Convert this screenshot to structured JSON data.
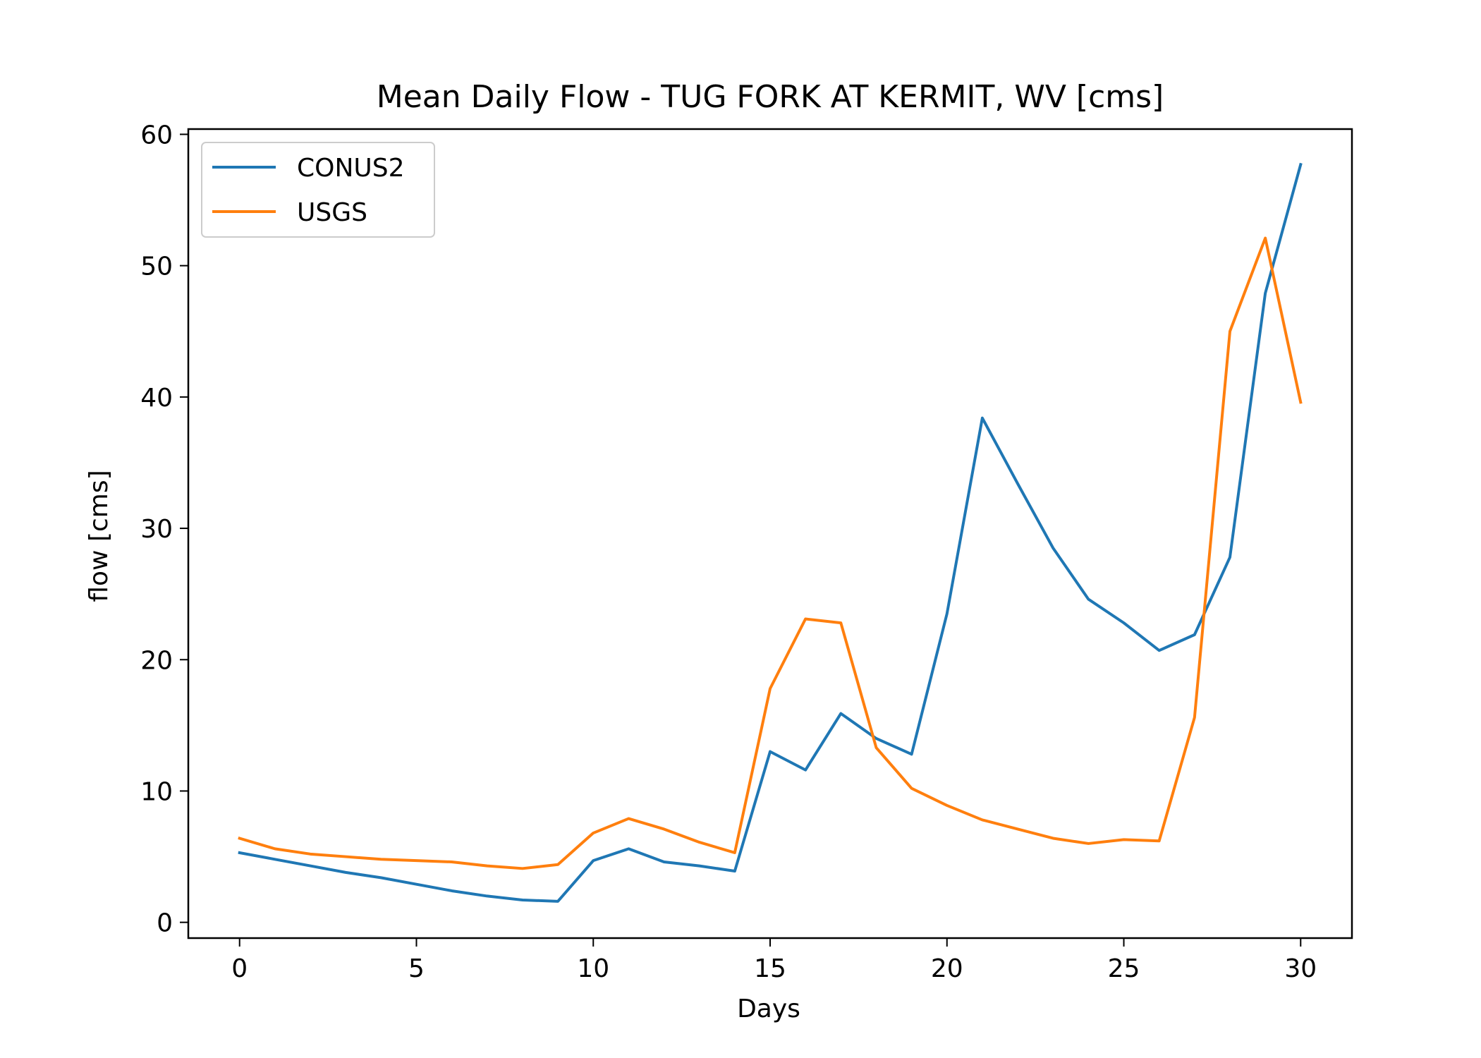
{
  "chart_data": {
    "type": "line",
    "title": "Mean Daily Flow - TUG FORK AT KERMIT, WV [cms]",
    "xlabel": "Days",
    "ylabel": "flow [cms]",
    "xlim": [
      -1.45,
      31.45
    ],
    "ylim": [
      -1.2,
      60.4
    ],
    "xticks": [
      0,
      5,
      10,
      15,
      20,
      25,
      30
    ],
    "yticks": [
      0,
      10,
      20,
      30,
      40,
      50,
      60
    ],
    "grid": false,
    "legend_position": "upper-left",
    "x": [
      0,
      1,
      2,
      3,
      4,
      5,
      6,
      7,
      8,
      9,
      10,
      11,
      12,
      13,
      14,
      15,
      16,
      17,
      18,
      19,
      20,
      21,
      22,
      23,
      24,
      25,
      26,
      27,
      28,
      29,
      30
    ],
    "series": [
      {
        "name": "CONUS2",
        "color": "#1f77b4",
        "values": [
          5.3,
          4.8,
          4.3,
          3.8,
          3.4,
          2.9,
          2.4,
          2.0,
          1.7,
          1.6,
          4.7,
          5.6,
          4.6,
          4.3,
          3.9,
          13.0,
          11.6,
          15.9,
          14.0,
          12.8,
          23.5,
          38.4,
          33.4,
          28.5,
          24.6,
          22.8,
          20.7,
          21.9,
          27.8,
          47.9,
          57.7
        ]
      },
      {
        "name": "USGS",
        "color": "#ff7f0e",
        "values": [
          6.4,
          5.6,
          5.2,
          5.0,
          4.8,
          4.7,
          4.6,
          4.3,
          4.1,
          4.4,
          6.8,
          7.9,
          7.1,
          6.1,
          5.3,
          17.8,
          23.1,
          22.8,
          13.3,
          10.2,
          8.9,
          7.8,
          7.1,
          6.4,
          6.0,
          6.3,
          6.2,
          15.6,
          45.0,
          52.1,
          39.6
        ]
      }
    ]
  }
}
